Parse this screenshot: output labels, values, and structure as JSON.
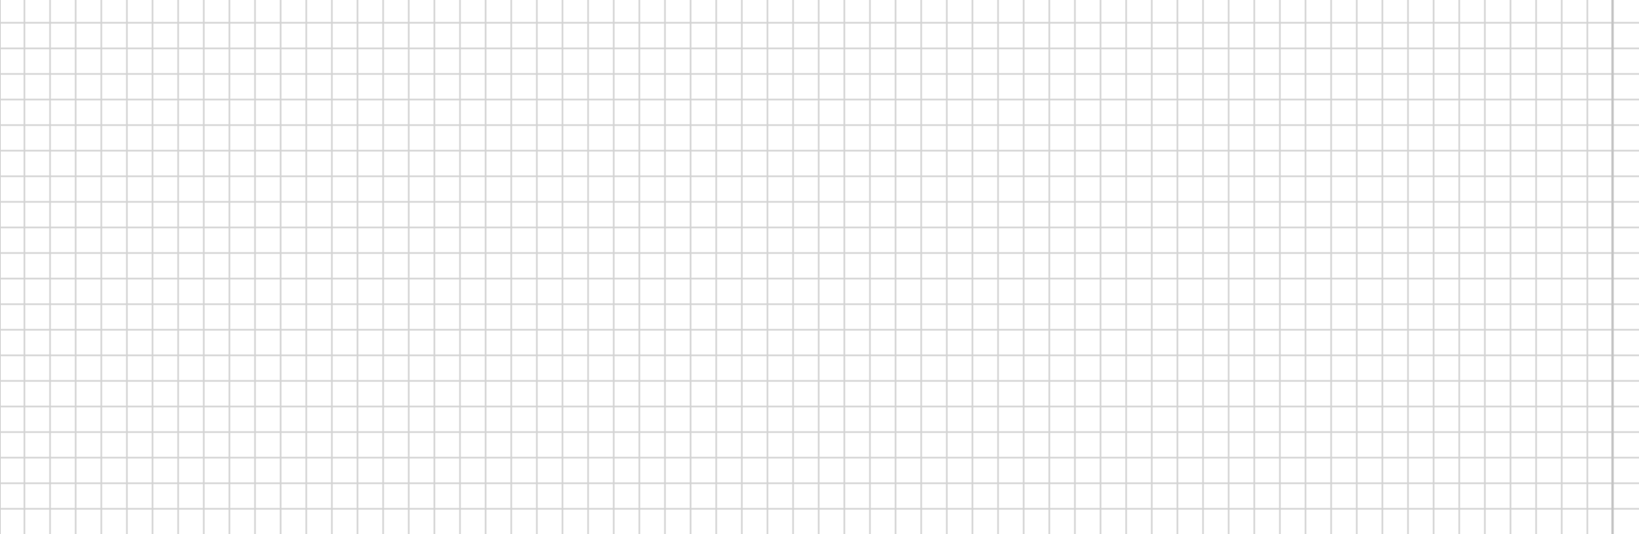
{
  "sheet": {
    "background_color": "#ffffff",
    "gridline_color": "#d3d3d3",
    "column_count": 63,
    "row_count": 21,
    "has_frozen_column_divider": true
  }
}
